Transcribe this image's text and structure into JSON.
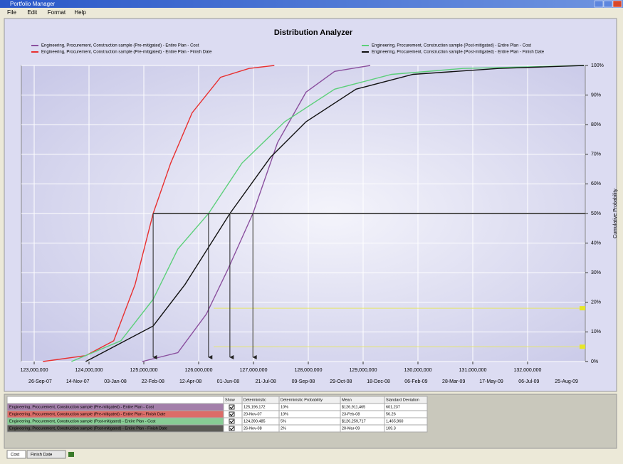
{
  "window": {
    "title": "Portfolio Manager",
    "menu": [
      "File",
      "Edit",
      "Format",
      "Help"
    ]
  },
  "chart_data": {
    "type": "line",
    "title": "Distribution Analyzer",
    "y_label": "Cumulative Probability",
    "xlim": [
      122766000,
      133052000
    ],
    "xticks": [
      {
        "value": 123000000,
        "label": "123,000,000"
      },
      {
        "value": 124000000,
        "label": "124,000,000"
      },
      {
        "value": 125000000,
        "label": "125,000,000"
      },
      {
        "value": 126000000,
        "label": "126,000,000"
      },
      {
        "value": 127000000,
        "label": "127,000,000"
      },
      {
        "value": 128000000,
        "label": "128,000,000"
      },
      {
        "value": 129000000,
        "label": "129,000,000"
      },
      {
        "value": 130000000,
        "label": "130,000,000"
      },
      {
        "value": 131000000,
        "label": "131,000,000"
      },
      {
        "value": 132000000,
        "label": "132,000,000"
      }
    ],
    "x2_categories": [
      "26-Sep-07",
      "14-Nov-07",
      "03-Jan-08",
      "22-Feb-08",
      "12-Apr-08",
      "01-Jun-08",
      "21-Jul-08",
      "09-Sep-08",
      "29-Oct-08",
      "18-Dec-08",
      "06-Feb-09",
      "28-Mar-09",
      "17-May-09",
      "06-Jul-09",
      "25-Aug-09"
    ],
    "ylim": [
      0,
      100
    ],
    "yticks": [
      {
        "value": 0,
        "label": "0%"
      },
      {
        "value": 10,
        "label": "10%"
      },
      {
        "value": 20,
        "label": "20%"
      },
      {
        "value": 30,
        "label": "30%"
      },
      {
        "value": 40,
        "label": "40%"
      },
      {
        "value": 50,
        "label": "50%"
      },
      {
        "value": 60,
        "label": "60%"
      },
      {
        "value": 70,
        "label": "70%"
      },
      {
        "value": 80,
        "label": "80%"
      },
      {
        "value": 90,
        "label": "90%"
      },
      {
        "value": 100,
        "label": "100%"
      }
    ],
    "grid": true,
    "probability_line": 50,
    "reference_lines": [
      18,
      5
    ],
    "series": [
      {
        "name": "Engineering, Procurement, Construction sample (Pre-mitigated) - Entire Plan - Cost",
        "color": "#8a4f9e",
        "x": [
          124970000,
          125620000,
          126140000,
          126530000,
          126990000,
          127440000,
          127960000,
          128480000,
          129130000
        ],
        "values": [
          0,
          3,
          16,
          31,
          50,
          74,
          91,
          98,
          100
        ]
      },
      {
        "name": "Engineering, Procurement, Construction sample (Pre-mitigated) - Entire Plan - Finish Date",
        "color": "#e83030",
        "x": [
          123160000,
          123940000,
          124450000,
          124840000,
          125170000,
          125490000,
          125880000,
          126400000,
          126920000,
          127380000
        ],
        "values": [
          0,
          2,
          7,
          26,
          50,
          67,
          84,
          96,
          99,
          100
        ]
      },
      {
        "name": "Engineering, Procurement, Construction sample (Post-mitigated) - Entire Plan - Cost",
        "color": "#5ccf7a",
        "x": [
          123680000,
          124580000,
          125170000,
          125620000,
          126180000,
          126790000,
          127570000,
          128480000,
          129520000,
          130820000,
          133030000
        ],
        "values": [
          0,
          7,
          21,
          38,
          50,
          67,
          81,
          92,
          97,
          99,
          100
        ]
      },
      {
        "name": "Engineering, Procurement, Construction sample (Post-mitigated) - Entire Plan - Finish Date",
        "color": "#111111",
        "x": [
          123940000,
          125170000,
          125750000,
          126570000,
          127310000,
          127960000,
          128870000,
          129910000,
          131470000,
          133030000
        ],
        "values": [
          0,
          12,
          26,
          50,
          69,
          81,
          92,
          97,
          99,
          100
        ]
      }
    ]
  },
  "table": {
    "columns": [
      "Show",
      "Deterministic",
      "Deterministic Probability",
      "Mean",
      "Standard Deviation"
    ],
    "rows": [
      [
        "125,196,172",
        "10%",
        "$126,911,465",
        "601,237"
      ],
      [
        "20-Nov-07",
        "10%",
        "23-Feb-08",
        "56.26"
      ],
      [
        "124,390,485",
        "5%",
        "$126,259,717",
        "1,465,960"
      ],
      [
        "26-Nov-08",
        "2%",
        "20-Mar-09",
        "109.3"
      ]
    ]
  },
  "tabs": [
    "Cost",
    "Finish Date"
  ]
}
